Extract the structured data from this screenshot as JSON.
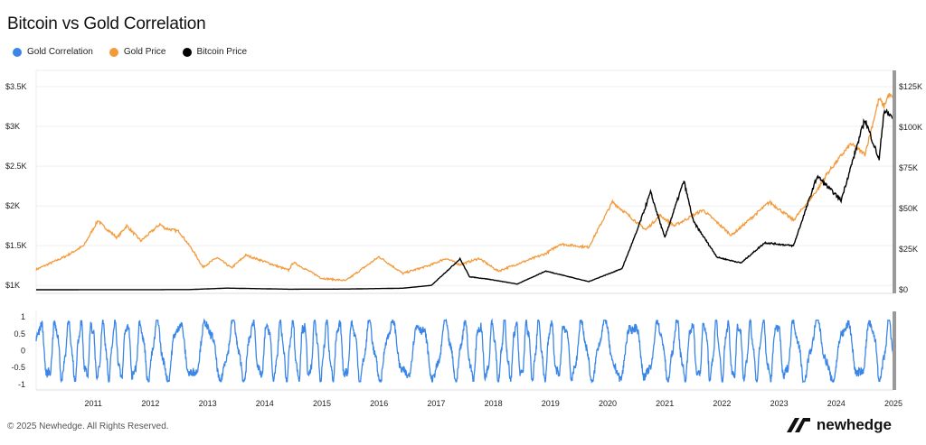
{
  "chart_data": {
    "title": "Bitcoin vs Gold Correlation",
    "type": "line",
    "legend": [
      {
        "name": "Gold Correlation",
        "color": "#3a86e8"
      },
      {
        "name": "Gold Price",
        "color": "#f39a3a"
      },
      {
        "name": "Bitcoin Price",
        "color": "#000000"
      }
    ],
    "legend_placement": "top-left",
    "x_range": [
      "2010-07-01",
      "2025-07-31"
    ],
    "x_ticks": [
      "2011",
      "2012",
      "2013",
      "2014",
      "2015",
      "2016",
      "2017",
      "2018",
      "2019",
      "2020",
      "2021",
      "2022",
      "2023",
      "2024",
      "2025"
    ],
    "left_axis": {
      "ticks": [
        "$1K",
        "$1.5K",
        "$2K",
        "$2.5K",
        "$3K",
        "$3.5K"
      ],
      "values": [
        1000,
        1500,
        2000,
        2500,
        3000,
        3500
      ],
      "range": [
        900,
        3500
      ]
    },
    "right_axis": {
      "ticks": [
        "$0",
        "$25K",
        "$50K",
        "$75K",
        "$100K",
        "$125K"
      ],
      "values": [
        0,
        25000,
        50000,
        75000,
        100000,
        125000
      ],
      "range": [
        0,
        125000
      ]
    },
    "corr_axis": {
      "ticks": [
        "1",
        "0.5",
        "0",
        "-0.5",
        "-1"
      ],
      "values": [
        1,
        0.5,
        0,
        -0.5,
        -1
      ],
      "range": [
        -1,
        1
      ]
    },
    "grid": true,
    "gold_price": {
      "name": "Gold Price",
      "x": [
        "2010-07",
        "2011-01",
        "2011-05",
        "2011-08",
        "2011-09",
        "2011-12",
        "2012-02",
        "2012-05",
        "2012-09",
        "2012-10",
        "2013-01",
        "2013-04",
        "2013-06",
        "2013-09",
        "2013-12",
        "2014-03",
        "2014-06",
        "2014-12",
        "2015-01",
        "2015-07",
        "2015-12",
        "2016-07",
        "2016-12",
        "2017-06",
        "2017-09",
        "2017-12",
        "2018-04",
        "2018-08",
        "2019-01",
        "2019-06",
        "2019-09",
        "2020-03",
        "2020-08",
        "2021-03",
        "2021-06",
        "2021-09",
        "2022-03",
        "2022-09",
        "2023-05",
        "2023-10",
        "2024-03",
        "2024-05",
        "2024-10",
        "2025-01",
        "2025-04",
        "2025-05",
        "2025-06",
        "2025-07"
      ],
      "values": [
        1200,
        1360,
        1500,
        1820,
        1750,
        1600,
        1750,
        1560,
        1770,
        1720,
        1680,
        1430,
        1230,
        1350,
        1220,
        1380,
        1320,
        1190,
        1290,
        1090,
        1060,
        1360,
        1150,
        1260,
        1340,
        1260,
        1340,
        1180,
        1290,
        1400,
        1520,
        1480,
        2050,
        1700,
        1880,
        1750,
        1950,
        1630,
        2050,
        1820,
        2200,
        2400,
        2780,
        2650,
        3350,
        3250,
        3400,
        3350
      ]
    },
    "bitcoin_price": {
      "name": "Bitcoin Price",
      "x": [
        "2010-07",
        "2013-03",
        "2013-11",
        "2014-12",
        "2015-12",
        "2016-12",
        "2017-06",
        "2017-12",
        "2018-02",
        "2018-06",
        "2018-12",
        "2019-06",
        "2019-12",
        "2020-03",
        "2020-10",
        "2021-01",
        "2021-04",
        "2021-07",
        "2021-11",
        "2022-01",
        "2022-06",
        "2022-11",
        "2023-04",
        "2023-10",
        "2024-03",
        "2024-08",
        "2025-01",
        "2025-04",
        "2025-05",
        "2025-07"
      ],
      "values": [
        0,
        100,
        1000,
        350,
        430,
        950,
        2700,
        19000,
        8000,
        6500,
        3500,
        11500,
        7200,
        5000,
        13000,
        35000,
        60000,
        32000,
        67000,
        42000,
        20000,
        16500,
        29000,
        27000,
        70000,
        55000,
        105000,
        80000,
        110000,
        106000
      ]
    },
    "gold_correlation": {
      "name": "Gold Correlation",
      "x_range": [
        "2010-07",
        "2025-07"
      ],
      "min": -1,
      "max": 1,
      "note": "oscillates between roughly -0.9 and 0.85"
    }
  },
  "footer": {
    "copyright": "© 2025 Newhedge. All Rights Reserved.",
    "brand": "newhedge"
  }
}
